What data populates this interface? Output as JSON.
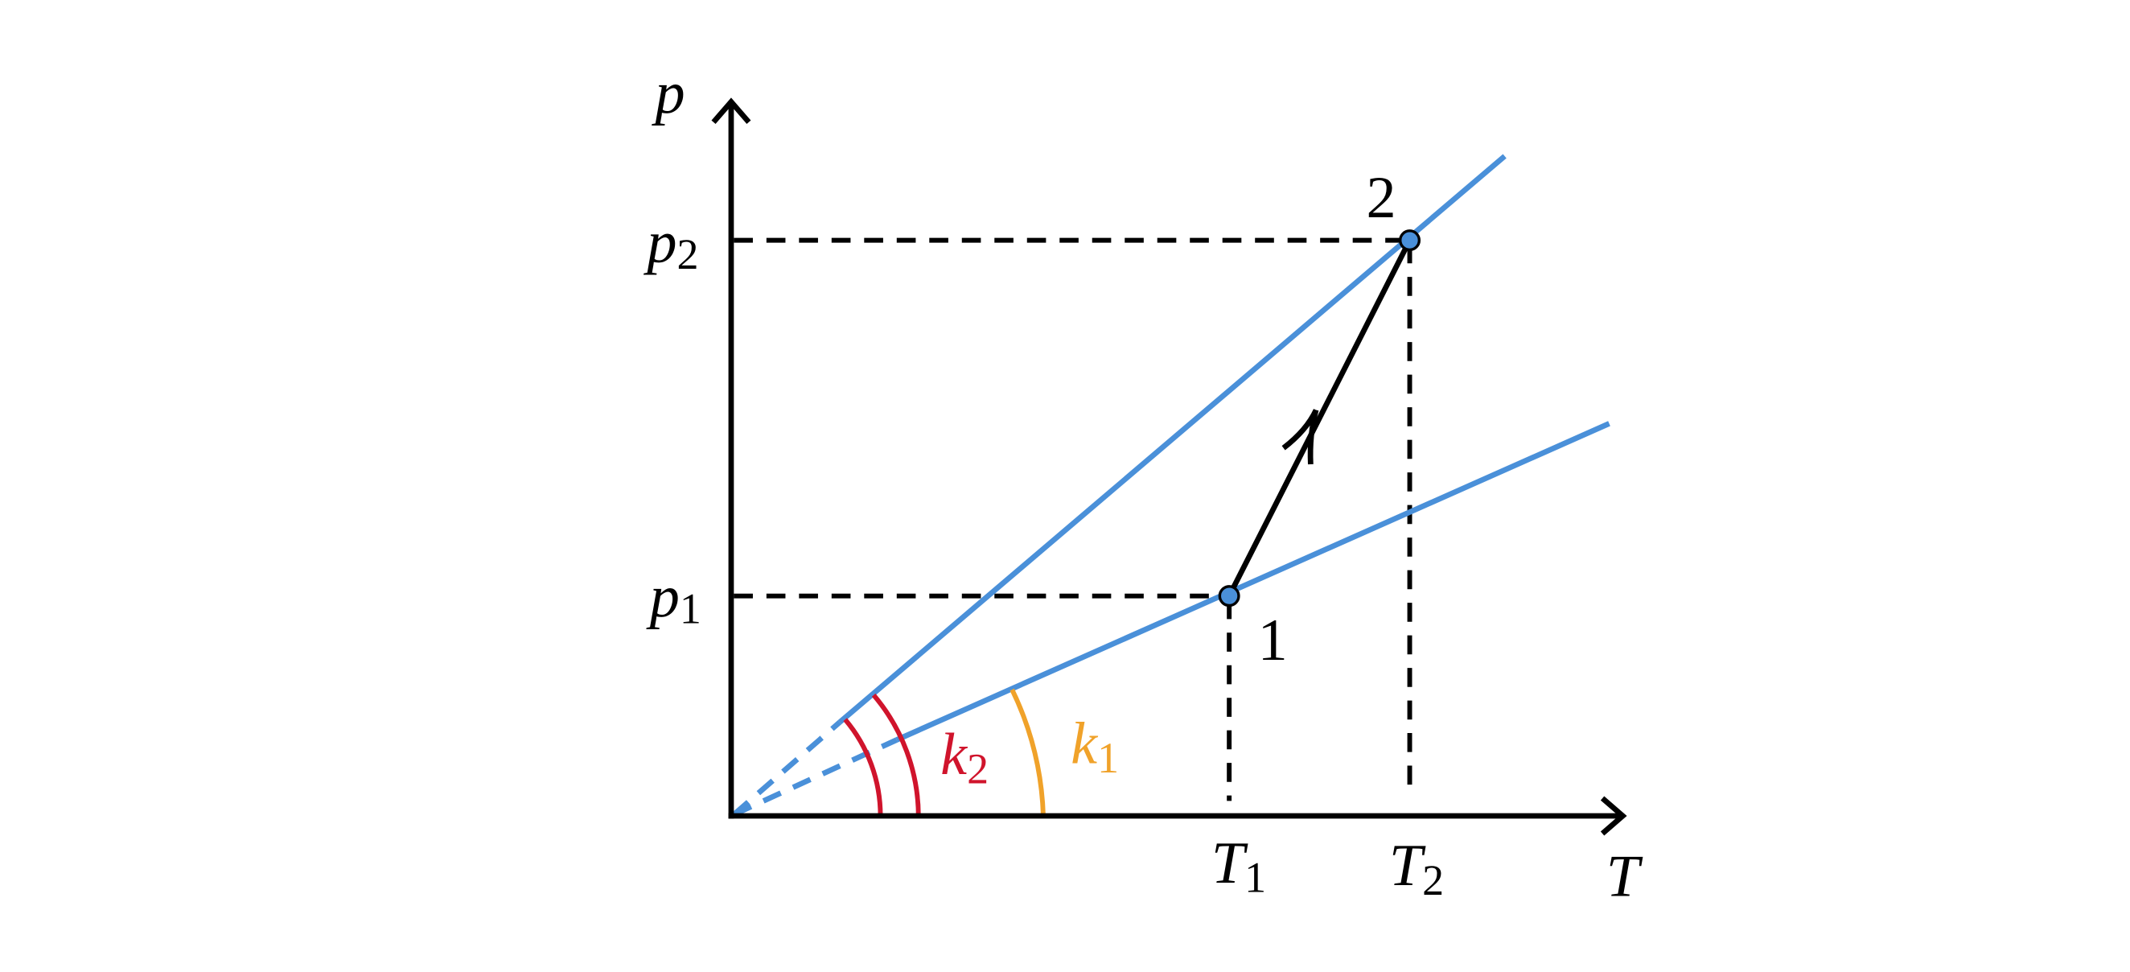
{
  "axes": {
    "y": "p",
    "x": "T"
  },
  "ticks": {
    "p2": {
      "base": "p",
      "sub": "2"
    },
    "p1": {
      "base": "p",
      "sub": "1"
    },
    "T1": {
      "base": "T",
      "sub": "1"
    },
    "T2": {
      "base": "T",
      "sub": "2"
    }
  },
  "points": {
    "state1": "1",
    "state2": "2"
  },
  "angles": {
    "k2": {
      "base": "k",
      "sub": "2"
    },
    "k1": {
      "base": "k",
      "sub": "1"
    }
  }
}
